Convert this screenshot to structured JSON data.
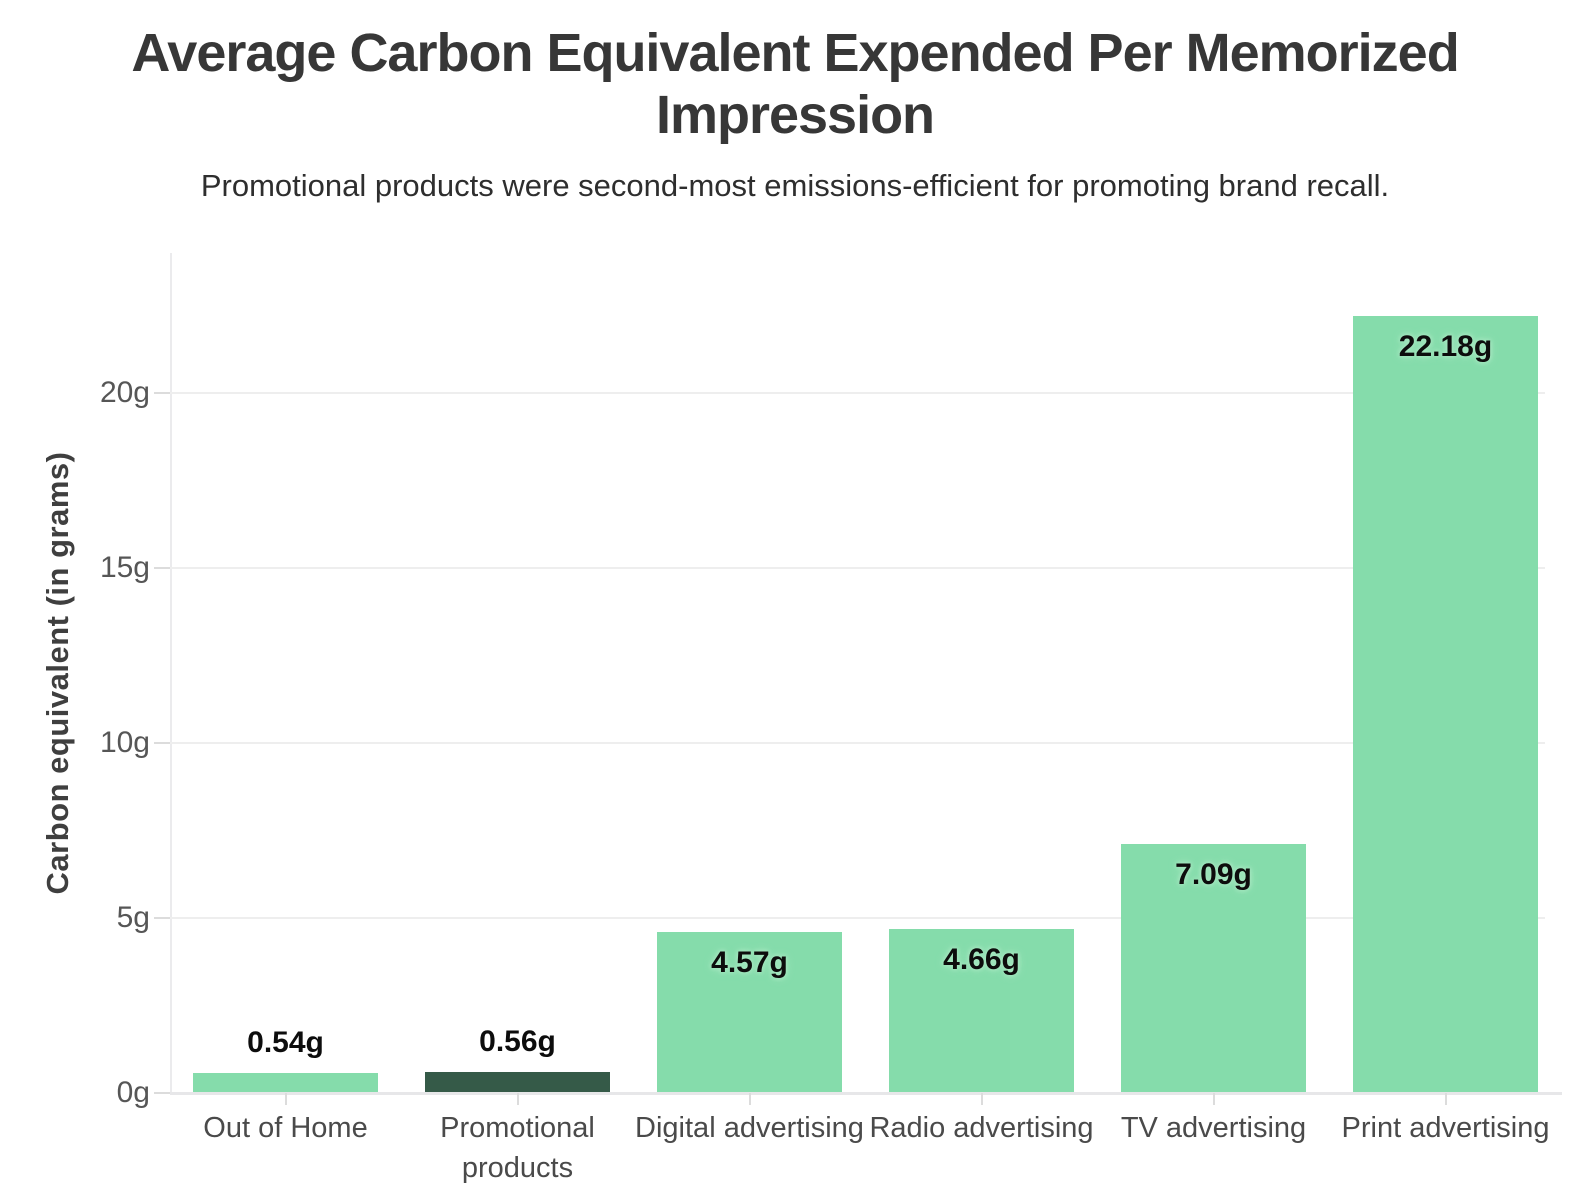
{
  "header": {
    "title": "Average Carbon Equivalent Expended Per Memorized Impression",
    "subtitle": "Promotional products were second-most emissions-efficient for promoting brand recall."
  },
  "chart_data": {
    "type": "bar",
    "title": "Average Carbon Equivalent Expended Per Memorized Impression",
    "subtitle": "Promotional products were second-most emissions-efficient for promoting brand recall.",
    "xlabel": "",
    "ylabel": "Carbon equivalent (in grams)",
    "categories": [
      "Out of Home",
      "Promotional products",
      "Digital advertising",
      "Radio advertising",
      "TV advertising",
      "Print advertising"
    ],
    "values": [
      0.54,
      0.56,
      4.57,
      4.66,
      7.09,
      22.18
    ],
    "value_labels": [
      "0.54g",
      "0.56g",
      "4.57g",
      "4.66g",
      "7.09g",
      "22.18g"
    ],
    "bar_colors": [
      "#85dcab",
      "#355a48",
      "#85dcab",
      "#85dcab",
      "#85dcab",
      "#85dcab"
    ],
    "highlighted_category": "Promotional products",
    "yticks": [
      {
        "value": 0,
        "label": "0g"
      },
      {
        "value": 5,
        "label": "5g"
      },
      {
        "value": 10,
        "label": "10g"
      },
      {
        "value": 15,
        "label": "15g"
      },
      {
        "value": 20,
        "label": "20g"
      }
    ],
    "ylim": [
      0,
      24
    ],
    "grid": true,
    "legend_position": "none",
    "colors": {
      "bar_default": "#85dcab",
      "bar_highlight": "#355a48",
      "grid": "#eeeeee",
      "axis_line": "#e7e7e9",
      "title_text": "#373737",
      "subtitle_text": "#2e2e2e",
      "tick_text": "#565656",
      "category_text": "#4a4a4a",
      "value_text": "#0d0d0d",
      "value_halo": "#a6e7c0"
    }
  }
}
